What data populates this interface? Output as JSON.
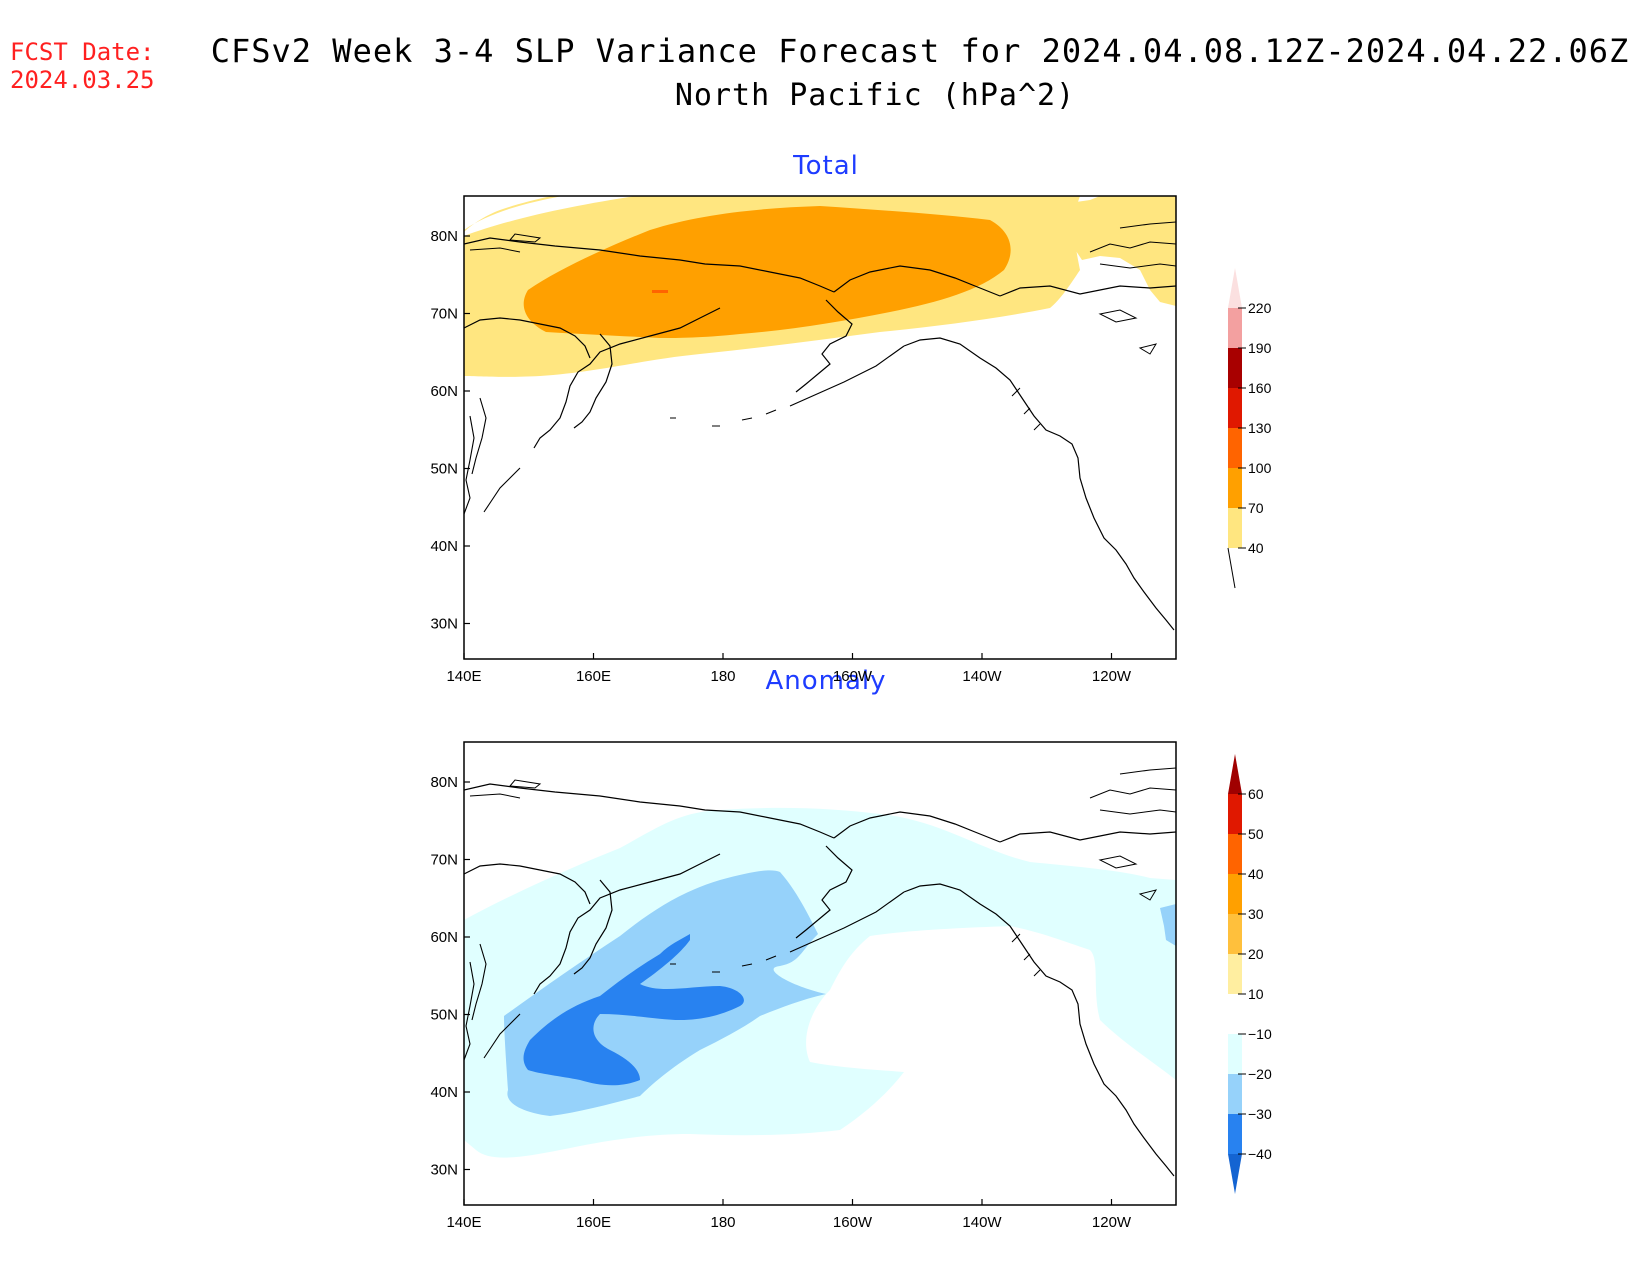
{
  "header": {
    "fcst_label": "FCST Date:",
    "fcst_date": "2024.03.25",
    "title_line1": "CFSv2 Week 3-4 SLP Variance Forecast for 2024.04.08.12Z-2024.04.22.06Z",
    "title_line2": "North Pacific (hPa^2)"
  },
  "axes": {
    "lat_labels": [
      "80N",
      "70N",
      "60N",
      "50N",
      "40N",
      "30N"
    ],
    "lon_labels": [
      "140E",
      "160E",
      "180",
      "160W",
      "140W",
      "120W"
    ]
  },
  "panels": [
    {
      "title": "Total",
      "colorbar_labels": [
        "220",
        "190",
        "160",
        "130",
        "100",
        "70",
        "40"
      ],
      "colorbar_colors": [
        "#fbe0e0",
        "#f3a0a0",
        "#a80000",
        "#e01800",
        "#ff6400",
        "#ffa000",
        "#ffe680"
      ]
    },
    {
      "title": "Anomaly",
      "colorbar_labels": [
        "60",
        "50",
        "40",
        "30",
        "20",
        "10",
        "−10",
        "−20",
        "−30",
        "−40"
      ],
      "colorbar_colors": [
        "#a00000",
        "#e01800",
        "#ff6400",
        "#ffa000",
        "#ffc03c",
        "#ffeea0",
        "#ffffff",
        "#e0ffff",
        "#96d2fa",
        "#2882f0",
        "#1464d2"
      ]
    }
  ],
  "fill_colors": {
    "level_40_70": "#ffe680",
    "level_70_100": "#ffa000",
    "level_100_130": "#ff6400",
    "anom_m10_m20": "#e0ffff",
    "anom_m20_m30": "#96d2fa",
    "anom_m30_m40": "#2882f0"
  }
}
